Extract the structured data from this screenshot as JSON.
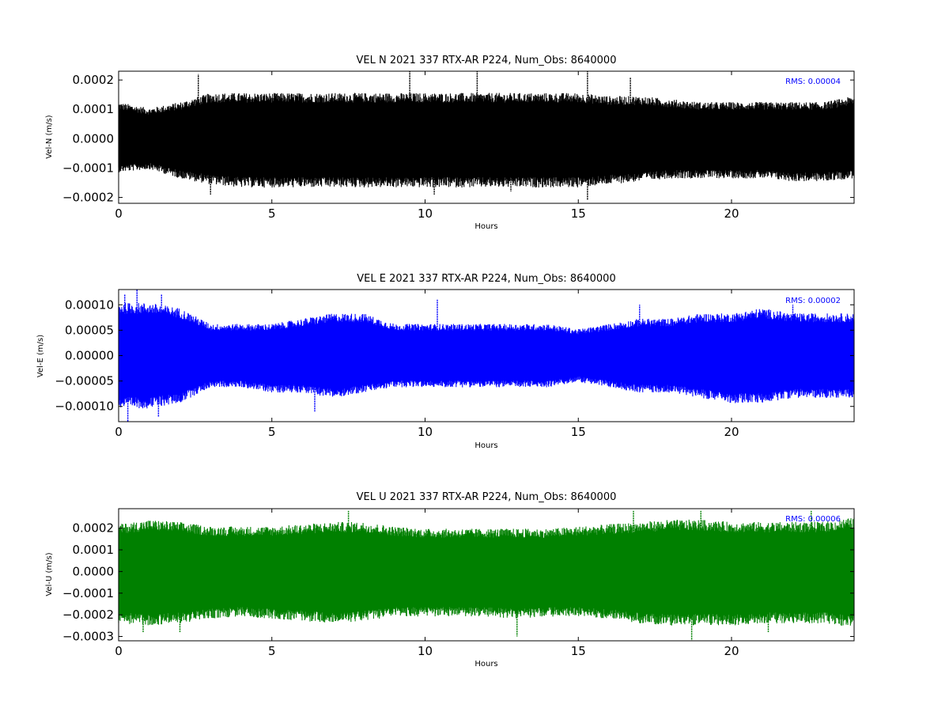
{
  "chart_data": [
    {
      "type": "line",
      "title": "VEL N 2021 337 RTX-AR  P224, Num_Obs: 8640000",
      "xlabel": "Hours",
      "ylabel": "Vel-N (m/s)",
      "xlim": [
        0,
        24
      ],
      "ylim": [
        -0.00022,
        0.00023
      ],
      "xticks": [
        0,
        5,
        10,
        15,
        20
      ],
      "xtick_labels": [
        "0",
        "5",
        "10",
        "15",
        "20"
      ],
      "yticks": [
        0.0002,
        0.0001,
        0.0,
        -0.0001,
        -0.0002
      ],
      "ytick_labels": [
        "0.0002",
        "0.0001",
        "0.0000",
        "−0.0001",
        "−0.0002"
      ],
      "annotation": "RMS:  0.00004",
      "grid": false,
      "color": "#000000",
      "series": [
        {
          "x": [
            0,
            1,
            2,
            3,
            4,
            5,
            6,
            7,
            8,
            9,
            10,
            11,
            12,
            13,
            14,
            15,
            16,
            17,
            18,
            19,
            20,
            21,
            22,
            23,
            24
          ],
          "upper": [
            0.00012,
            0.0001,
            0.00012,
            0.00015,
            0.00015,
            0.00015,
            0.00015,
            0.00015,
            0.00015,
            0.00015,
            0.00015,
            0.00015,
            0.00015,
            0.00015,
            0.00015,
            0.00015,
            0.00014,
            0.00014,
            0.00013,
            0.00012,
            0.00012,
            0.00012,
            0.00012,
            0.00012,
            0.00014
          ],
          "lower": [
            -0.00011,
            -0.0001,
            -0.00013,
            -0.00015,
            -0.00016,
            -0.00016,
            -0.00016,
            -0.00016,
            -0.00016,
            -0.00016,
            -0.00016,
            -0.00016,
            -0.00016,
            -0.00016,
            -0.00016,
            -0.00016,
            -0.00015,
            -0.00014,
            -0.00013,
            -0.00013,
            -0.00013,
            -0.00013,
            -0.00014,
            -0.00014,
            -0.00013
          ]
        }
      ],
      "spikes": [
        {
          "x": 2.6,
          "y": 0.00022
        },
        {
          "x": 9.5,
          "y": 0.00023
        },
        {
          "x": 11.7,
          "y": 0.00023
        },
        {
          "x": 15.3,
          "y": 0.00023
        },
        {
          "x": 16.7,
          "y": 0.00021
        },
        {
          "x": 15.3,
          "y": -0.00021
        },
        {
          "x": 10.3,
          "y": -0.00019
        },
        {
          "x": 3.0,
          "y": -0.00019
        },
        {
          "x": 12.8,
          "y": -0.00018
        }
      ]
    },
    {
      "type": "line",
      "title": "VEL E 2021 337 RTX-AR  P224, Num_Obs: 8640000",
      "xlabel": "Hours",
      "ylabel": "Vel-E (m/s)",
      "xlim": [
        0,
        24
      ],
      "ylim": [
        -0.00013,
        0.00013
      ],
      "xticks": [
        0,
        5,
        10,
        15,
        20
      ],
      "xtick_labels": [
        "0",
        "5",
        "10",
        "15",
        "20"
      ],
      "yticks": [
        0.0001,
        5e-05,
        0.0,
        -5e-05,
        -0.0001
      ],
      "ytick_labels": [
        "0.00010",
        "0.00005",
        "0.00000",
        "−0.00005",
        "−0.00010"
      ],
      "annotation": "RMS:  0.00002",
      "grid": false,
      "color": "#0000ff",
      "series": [
        {
          "x": [
            0,
            1,
            2,
            3,
            4,
            5,
            6,
            7,
            8,
            9,
            10,
            11,
            12,
            13,
            14,
            15,
            16,
            17,
            18,
            19,
            20,
            21,
            22,
            23,
            24
          ],
          "upper": [
            0.0001,
            0.0001,
            9e-05,
            6e-05,
            6e-05,
            6e-05,
            7e-05,
            8e-05,
            8e-05,
            6e-05,
            6e-05,
            6e-05,
            6e-05,
            6e-05,
            6e-05,
            5e-05,
            6e-05,
            7e-05,
            7e-05,
            8e-05,
            8e-05,
            9e-05,
            8e-05,
            8e-05,
            8e-05
          ],
          "lower": [
            -0.0001,
            -0.0001,
            -9e-05,
            -6e-05,
            -6e-05,
            -7e-05,
            -7e-05,
            -8e-05,
            -7e-05,
            -6e-05,
            -6e-05,
            -6e-05,
            -6e-05,
            -6e-05,
            -6e-05,
            -5e-05,
            -6e-05,
            -7e-05,
            -7e-05,
            -8e-05,
            -9e-05,
            -9e-05,
            -8e-05,
            -8e-05,
            -8e-05
          ]
        }
      ],
      "spikes": [
        {
          "x": 0.2,
          "y": 0.00012
        },
        {
          "x": 0.6,
          "y": 0.00013
        },
        {
          "x": 1.4,
          "y": 0.00012
        },
        {
          "x": 10.4,
          "y": 0.00011
        },
        {
          "x": 17.0,
          "y": 0.0001
        },
        {
          "x": 22.0,
          "y": 0.0001
        },
        {
          "x": 0.3,
          "y": -0.00013
        },
        {
          "x": 1.3,
          "y": -0.00012
        },
        {
          "x": 6.4,
          "y": -0.00011
        }
      ]
    },
    {
      "type": "line",
      "title": "VEL U 2021 337 RTX-AR  P224, Num_Obs: 8640000",
      "xlabel": "Hours",
      "ylabel": "Vel-U (m/s)",
      "xlim": [
        0,
        24
      ],
      "ylim": [
        -0.00032,
        0.00029
      ],
      "xticks": [
        0,
        5,
        10,
        15,
        20
      ],
      "xtick_labels": [
        "0",
        "5",
        "10",
        "15",
        "20"
      ],
      "yticks": [
        0.0002,
        0.0001,
        0.0,
        -0.0001,
        -0.0002,
        -0.0003
      ],
      "ytick_labels": [
        "0.0002",
        "0.0001",
        "0.0000",
        "−0.0001",
        "−0.0002",
        "−0.0003"
      ],
      "annotation": "RMS:  0.00006",
      "grid": false,
      "color": "#008000",
      "series": [
        {
          "x": [
            0,
            1,
            2,
            3,
            4,
            5,
            6,
            7,
            8,
            9,
            10,
            11,
            12,
            13,
            14,
            15,
            16,
            17,
            18,
            19,
            20,
            21,
            22,
            23,
            24
          ],
          "upper": [
            0.00021,
            0.00023,
            0.00022,
            0.0002,
            0.0002,
            0.0002,
            0.00021,
            0.00022,
            0.00022,
            0.0002,
            0.00019,
            0.00019,
            0.00019,
            0.00019,
            0.00019,
            0.0002,
            0.00021,
            0.00022,
            0.00023,
            0.00023,
            0.00022,
            0.00022,
            0.00022,
            0.00022,
            0.00024
          ],
          "lower": [
            -0.00023,
            -0.00024,
            -0.00023,
            -0.00021,
            -0.0002,
            -0.00021,
            -0.00022,
            -0.00023,
            -0.00022,
            -0.0002,
            -0.0002,
            -0.0002,
            -0.0002,
            -0.00021,
            -0.0002,
            -0.0002,
            -0.00021,
            -0.00023,
            -0.00024,
            -0.00024,
            -0.00024,
            -0.00023,
            -0.00023,
            -0.00023,
            -0.00025
          ]
        }
      ],
      "spikes": [
        {
          "x": 7.5,
          "y": 0.00028
        },
        {
          "x": 16.8,
          "y": 0.00028
        },
        {
          "x": 19.0,
          "y": 0.00028
        },
        {
          "x": 22.6,
          "y": 0.00028
        },
        {
          "x": 13.0,
          "y": -0.0003
        },
        {
          "x": 18.7,
          "y": -0.00032
        },
        {
          "x": 2.0,
          "y": -0.00028
        },
        {
          "x": 0.8,
          "y": -0.00028
        },
        {
          "x": 21.2,
          "y": -0.00028
        }
      ]
    }
  ]
}
